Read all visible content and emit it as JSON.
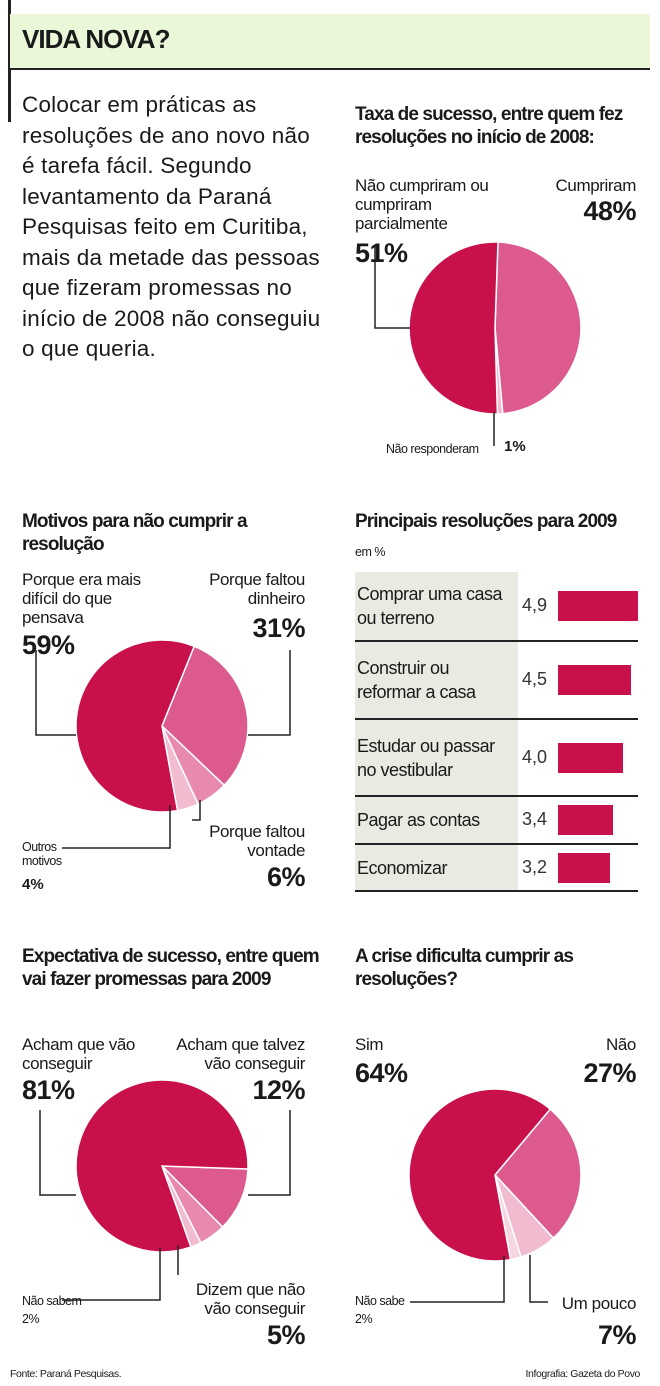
{
  "header": {
    "title": "VIDA NOVA?"
  },
  "intro": "Colocar em práticas as resoluções de ano novo não é tarefa fácil. Segundo levantamento da Paraná Pesquisas feito em Curitiba, mais da metade das pessoas que fizeram promessas no início de 2008 não conseguiu o que queria.",
  "colors": {
    "dark": "#c8104a",
    "mid": "#dc5a8e",
    "light": "#f2bcd0",
    "header_bg": "#eaf7d8",
    "table_bg": "#e7ebe1"
  },
  "chart_data": [
    {
      "type": "pie",
      "title": "Taxa de sucesso, entre quem fez resoluções no início de 2008:",
      "slices": [
        {
          "label": "Cumpriram",
          "value": 48,
          "display": "48%"
        },
        {
          "label": "Não responderam",
          "value": 1,
          "display": "1%"
        },
        {
          "label": "Não cumpriram ou cumpriram parcialmente",
          "value": 51,
          "display": "51%"
        }
      ]
    },
    {
      "type": "pie",
      "title": "Motivos para não cumprir a resolução",
      "slices": [
        {
          "label": "Porque faltou dinheiro",
          "value": 31,
          "display": "31%"
        },
        {
          "label": "Porque faltou vontade",
          "value": 6,
          "display": "6%"
        },
        {
          "label": "Outros motivos",
          "value": 4,
          "display": "4%"
        },
        {
          "label": "Porque era mais difícil do que pensava",
          "value": 59,
          "display": "59%"
        }
      ]
    },
    {
      "type": "bar",
      "title": "Principais resoluções para 2009",
      "subtitle": "em %",
      "categories": [
        "Comprar uma casa ou terreno",
        "Construir ou reformar a casa",
        "Estudar ou passar no vestibular",
        "Pagar as contas",
        "Economizar"
      ],
      "values": [
        4.9,
        4.5,
        4.0,
        3.4,
        3.2
      ],
      "labels": [
        "4,9",
        "4,5",
        "4,0",
        "3,4",
        "3,2"
      ]
    },
    {
      "type": "pie",
      "title": "Expectativa de sucesso, entre quem vai fazer promessas para 2009",
      "slices": [
        {
          "label": "Acham que talvez vão conseguir",
          "value": 12,
          "display": "12%"
        },
        {
          "label": "Dizem que não vão conseguir",
          "value": 5,
          "display": "5%"
        },
        {
          "label": "Não sabem",
          "value": 2,
          "display": "2%"
        },
        {
          "label": "Acham que vão conseguir",
          "value": 81,
          "display": "81%"
        }
      ]
    },
    {
      "type": "pie",
      "title": "A crise dificulta cumprir as resoluções?",
      "slices": [
        {
          "label": "Não",
          "value": 27,
          "display": "27%"
        },
        {
          "label": "Um pouco",
          "value": 7,
          "display": "7%"
        },
        {
          "label": "Não sabe",
          "value": 2,
          "display": "2%"
        },
        {
          "label": "Sim",
          "value": 64,
          "display": "64%"
        }
      ]
    }
  ],
  "footer": {
    "source": "Fonte: Paraná Pesquisas.",
    "credit": "Infografia: Gazeta do Povo"
  }
}
